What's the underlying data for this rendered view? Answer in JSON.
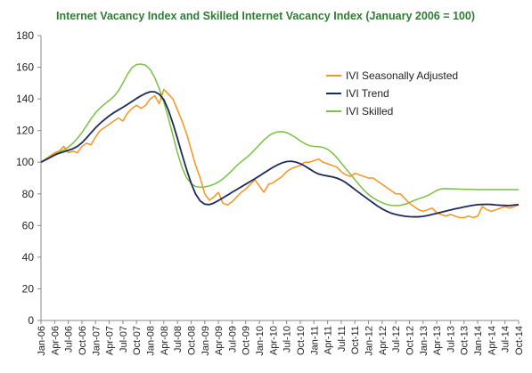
{
  "chart_data": {
    "type": "line",
    "title": "Internet Vacancy Index and Skilled Internet Vacancy Index (January 2006 = 100)",
    "title_color": "#2E7D32",
    "xlabel": "",
    "ylabel": "",
    "ylim": [
      0,
      180
    ],
    "yticks": [
      0,
      20,
      40,
      60,
      80,
      100,
      120,
      140,
      160,
      180
    ],
    "grid": false,
    "legend_position": "center-right",
    "x_start": "Jan-06",
    "x_end": "Oct-14",
    "xtick_labels": [
      "Jan-06",
      "Apr-06",
      "Jul-06",
      "Oct-06",
      "Jan-07",
      "Apr-07",
      "Jul-07",
      "Oct-07",
      "Jan-08",
      "Apr-08",
      "Jul-08",
      "Oct-08",
      "Jan-09",
      "Apr-09",
      "Jul-09",
      "Oct-09",
      "Jan-10",
      "Apr-10",
      "Jul-10",
      "Oct-10",
      "Jan-11",
      "Apr-11",
      "Jul-11",
      "Oct-11",
      "Jan-12",
      "Apr-12",
      "Jul-12",
      "Oct-12",
      "Jan-13",
      "Apr-13",
      "Jul-13",
      "Oct-13",
      "Jan-14",
      "Apr-14",
      "Jul-14",
      "Oct-14"
    ],
    "series": [
      {
        "name": "IVI Seasonally Adjusted",
        "color": "#F7941D",
        "values": [
          100,
          102,
          104,
          106,
          107,
          110,
          106,
          107,
          106,
          110,
          112,
          111,
          116,
          120,
          122,
          124,
          126,
          128,
          126,
          131,
          134,
          136,
          134,
          136,
          140,
          142,
          137,
          146,
          143,
          140,
          133,
          126,
          118,
          108,
          98,
          90,
          80,
          76,
          78,
          81,
          74,
          73,
          75,
          78,
          81,
          83,
          86,
          89,
          85,
          81,
          86,
          87,
          89,
          91,
          94,
          96,
          97,
          98,
          100,
          100,
          101,
          102,
          100,
          99,
          98,
          97,
          94,
          92,
          91,
          93,
          92,
          91,
          90,
          90,
          88,
          86,
          84,
          82,
          80,
          80,
          77,
          74,
          72,
          70,
          69,
          70,
          71,
          68,
          67,
          66,
          67,
          66,
          65,
          65,
          66,
          65,
          66,
          72,
          70,
          69,
          70,
          71,
          72,
          71,
          72,
          73
        ]
      },
      {
        "name": "IVI Trend",
        "color": "#1F2A5C",
        "values": [
          100,
          101.5,
          103,
          104.5,
          105.7,
          106.6,
          107.5,
          108.5,
          110,
          112.3,
          115.3,
          118.6,
          121.8,
          124.6,
          127,
          129.3,
          131.3,
          133,
          134.7,
          136.5,
          138.4,
          140.3,
          142,
          143.5,
          144.5,
          144.5,
          143,
          139.5,
          133,
          124.5,
          115,
          105,
          95.5,
          86.8,
          79.8,
          75.5,
          73.5,
          73.2,
          74.2,
          75.8,
          77.5,
          79.2,
          81,
          82.7,
          84.4,
          86.1,
          87.8,
          89.5,
          91.3,
          93.2,
          95,
          96.8,
          98.3,
          99.6,
          100.4,
          100.6,
          100.1,
          99.1,
          97.6,
          95.8,
          94,
          92.6,
          91.8,
          91.3,
          90.8,
          90,
          88.8,
          87.1,
          85,
          82.8,
          80.6,
          78.5,
          76.4,
          74.3,
          72.3,
          70.5,
          69,
          67.8,
          67,
          66.4,
          65.9,
          65.6,
          65.5,
          65.5,
          65.8,
          66.3,
          67,
          67.7,
          68.4,
          69.1,
          69.8,
          70.5,
          71.1,
          71.7,
          72.3,
          72.8,
          73.2,
          73.3,
          73.4,
          73.3,
          73,
          72.8,
          72.7,
          72.6,
          73,
          73.2
        ]
      },
      {
        "name": "IVI Skilled",
        "color": "#7AC143",
        "values": [
          100,
          101.7,
          103.5,
          105.2,
          106.5,
          107.8,
          109.5,
          112,
          115,
          118.8,
          123,
          127.5,
          131.3,
          134.3,
          136.8,
          139,
          141.5,
          145,
          150,
          155.5,
          159.8,
          161.7,
          162,
          161.3,
          158.6,
          153.5,
          146.5,
          138,
          128,
          117,
          106,
          96.7,
          90.2,
          86.5,
          84.6,
          84.2,
          84.4,
          85,
          86,
          87.5,
          89.5,
          92,
          94.8,
          97.8,
          100.3,
          102.5,
          105,
          108,
          111,
          114,
          116.5,
          118.3,
          119.2,
          119.3,
          118.7,
          117.3,
          115.5,
          113.5,
          111.7,
          110.5,
          110,
          109.8,
          109.3,
          108.2,
          106,
          103,
          99.5,
          96,
          92.5,
          89,
          85.5,
          82.3,
          79.6,
          77.5,
          75.8,
          74.4,
          73.3,
          72.7,
          72.6,
          72.8,
          73.4,
          74.5,
          75.8,
          76.9,
          77.8,
          79,
          80.5,
          82.2,
          83.2,
          83.3,
          83.2,
          83.1,
          83,
          82.9,
          82.8,
          82.8,
          82.7,
          82.7,
          82.7,
          82.7,
          82.7,
          82.7,
          82.7,
          82.7,
          82.7,
          82.7
        ]
      }
    ]
  }
}
